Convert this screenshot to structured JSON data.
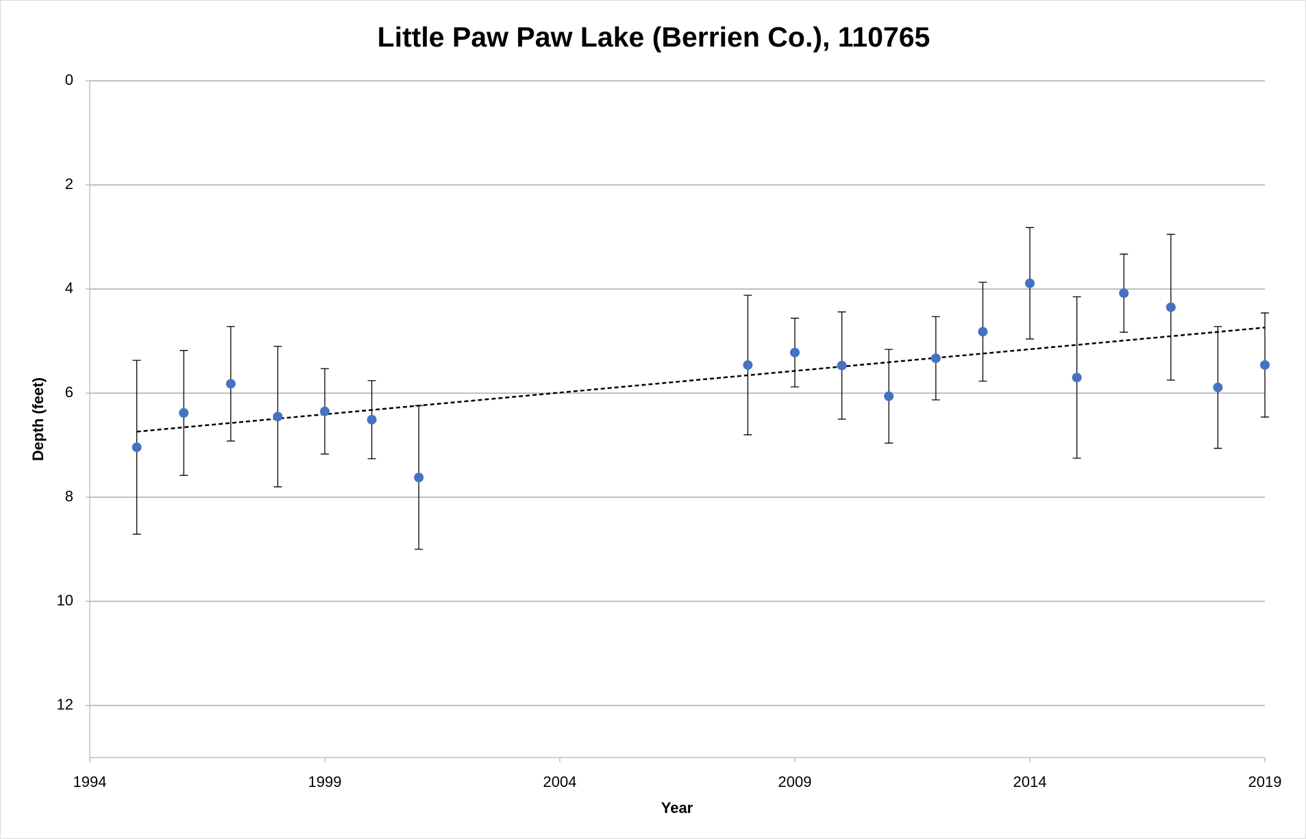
{
  "chart_data": {
    "type": "scatter",
    "title": "Little Paw Paw Lake (Berrien Co.), 110765",
    "x_label": "Year",
    "y_label": "Depth (feet)",
    "xlim": [
      1994,
      2019
    ],
    "xticks": [
      1994,
      1999,
      2004,
      2009,
      2014,
      2019
    ],
    "ylim": [
      0,
      13
    ],
    "yticks": [
      0,
      2,
      4,
      6,
      8,
      10,
      12
    ],
    "y_reversed": true,
    "grid": true,
    "series": [
      {
        "color": "#4472c4",
        "x": [
          1995,
          1996,
          1997,
          1998,
          1999,
          2000,
          2001,
          2008,
          2009,
          2010,
          2011,
          2012,
          2013,
          2014,
          2015,
          2016,
          2017,
          2018,
          2019
        ],
        "values": [
          7.04,
          6.38,
          5.82,
          6.45,
          6.35,
          6.51,
          7.62,
          5.46,
          5.22,
          5.47,
          6.06,
          5.33,
          4.82,
          3.89,
          5.7,
          4.08,
          4.35,
          5.89,
          5.46
        ],
        "errors": [
          1.67,
          1.2,
          1.1,
          1.35,
          0.82,
          0.75,
          1.38,
          1.34,
          0.66,
          1.03,
          0.9,
          0.8,
          0.95,
          1.07,
          1.55,
          0.75,
          1.4,
          1.17,
          1.0
        ]
      }
    ],
    "trendline": {
      "color": "#000000",
      "x": [
        1995,
        2019
      ],
      "values": [
        6.74,
        4.74
      ]
    }
  }
}
